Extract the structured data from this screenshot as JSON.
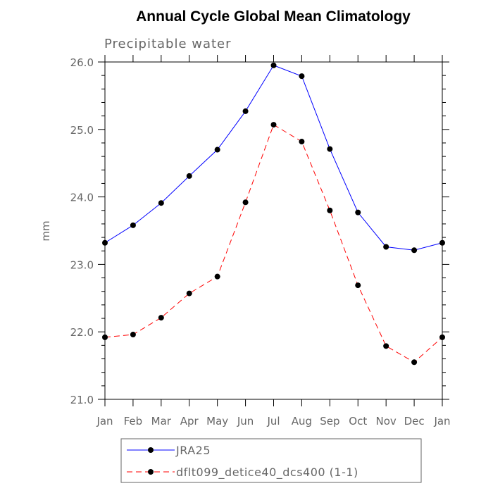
{
  "chart_data": {
    "type": "line",
    "title": "Annual Cycle Global Mean Climatology",
    "subtitle": "Precipitable water",
    "xlabel": "",
    "ylabel": "mm",
    "categories": [
      "Jan",
      "Feb",
      "Mar",
      "Apr",
      "May",
      "Jun",
      "Jul",
      "Aug",
      "Sep",
      "Oct",
      "Nov",
      "Dec",
      "Jan"
    ],
    "ylim": [
      21.0,
      26.0
    ],
    "yticks": [
      21.0,
      22.0,
      23.0,
      24.0,
      25.0,
      26.0
    ],
    "ytick_labels": [
      "21.0",
      "22.0",
      "23.0",
      "24.0",
      "25.0",
      "26.0"
    ],
    "grid": false,
    "legend_position": "bottom",
    "series": [
      {
        "name": "JRA25",
        "color": "#0000ff",
        "style": "solid",
        "values": [
          23.32,
          23.58,
          23.91,
          24.31,
          24.7,
          25.27,
          25.95,
          25.79,
          24.71,
          23.77,
          23.26,
          23.21,
          23.32
        ]
      },
      {
        "name": "dflt099_detice40_dcs400 (1-1)",
        "color": "#ff0000",
        "style": "dashed",
        "values": [
          21.92,
          21.96,
          22.21,
          22.57,
          22.82,
          23.92,
          25.07,
          24.82,
          23.8,
          22.69,
          21.79,
          21.55,
          21.92
        ]
      }
    ]
  }
}
